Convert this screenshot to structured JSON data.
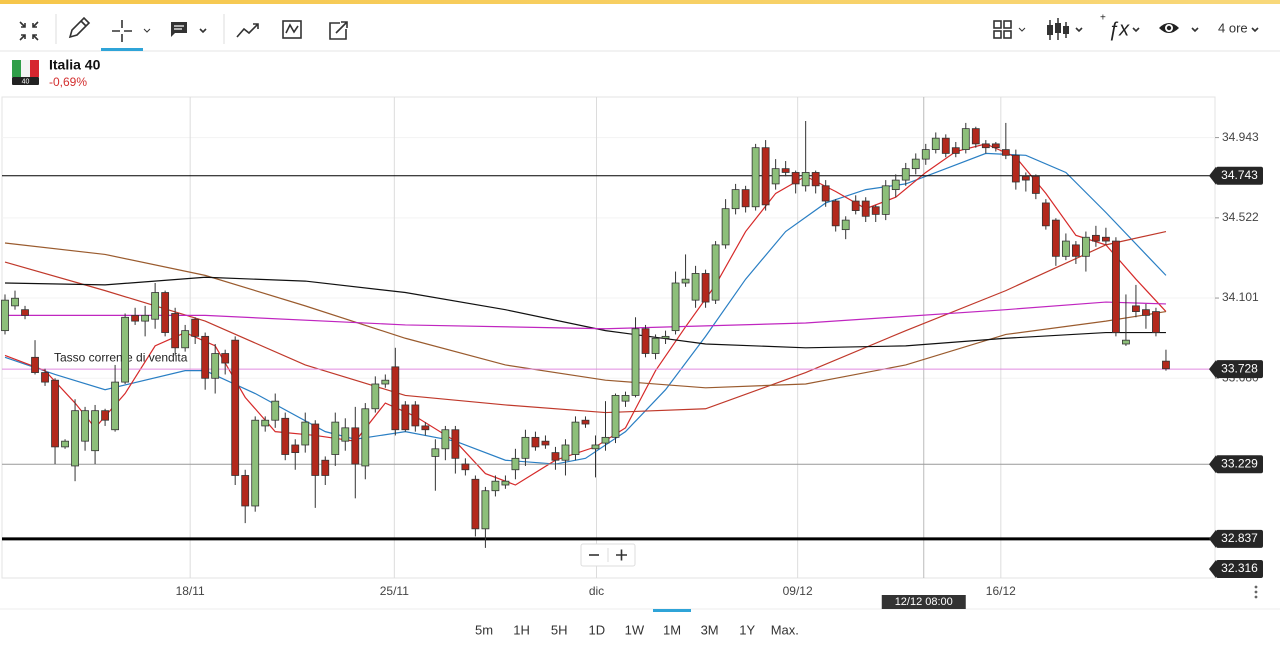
{
  "toolbar": {
    "interval": "4 ore"
  },
  "instrument": {
    "name": "Italia 40",
    "change": "-0,69%",
    "badge": "40"
  },
  "ranges": [
    "5m",
    "1H",
    "5H",
    "1D",
    "1W",
    "1M",
    "3M",
    "1Y",
    "Max."
  ],
  "chart_data": {
    "type": "candlestick",
    "xlim": [
      -0.3,
      120.9
    ],
    "ylim": [
      32.632,
      35.156
    ],
    "xticks": [
      {
        "value": 18.5,
        "label": "18/11"
      },
      {
        "value": 38.9,
        "label": "25/11"
      },
      {
        "value": 59.1,
        "label": "dic"
      },
      {
        "value": 79.2,
        "label": "09/12"
      },
      {
        "value": 99.5,
        "label": "16/12"
      }
    ],
    "yticks": [
      34.943,
      34.522,
      34.101,
      {
        "value": 33.68,
        "label": "33.680"
      }
    ],
    "crosshair": {
      "value": 91.8,
      "label": "12/12 08:00"
    },
    "up_color": "#8dbf7a",
    "down_color": "#b3281c",
    "price_lines": [
      {
        "value": 34.743,
        "color": "#000000",
        "width": 1
      },
      {
        "value": 33.728,
        "color": "#e08be0",
        "width": 1,
        "annotation": "Tasso corrente di vendita"
      },
      {
        "value": 33.229,
        "color": "#999999",
        "width": 1
      },
      {
        "value": 32.837,
        "color": "#000000",
        "width": 3
      },
      {
        "value": 32.316,
        "color": "#000000",
        "width": 1
      }
    ],
    "candles": [
      {
        "o": 33.93,
        "h": 34.12,
        "l": 33.91,
        "c": 34.09
      },
      {
        "o": 34.06,
        "h": 34.14,
        "l": 34.04,
        "c": 34.1
      },
      {
        "o": 34.04,
        "h": 34.06,
        "l": 33.99,
        "c": 34.01
      },
      {
        "o": 33.79,
        "h": 33.88,
        "l": 33.7,
        "c": 33.71
      },
      {
        "o": 33.71,
        "h": 33.73,
        "l": 33.64,
        "c": 33.66
      },
      {
        "o": 33.67,
        "h": 33.68,
        "l": 33.23,
        "c": 33.32
      },
      {
        "o": 33.32,
        "h": 33.36,
        "l": 33.31,
        "c": 33.35
      },
      {
        "o": 33.22,
        "h": 33.57,
        "l": 33.14,
        "c": 33.51
      },
      {
        "o": 33.35,
        "h": 33.53,
        "l": 33.3,
        "c": 33.51
      },
      {
        "o": 33.3,
        "h": 33.54,
        "l": 33.23,
        "c": 33.51
      },
      {
        "o": 33.51,
        "h": 33.52,
        "l": 33.43,
        "c": 33.46
      },
      {
        "o": 33.41,
        "h": 33.75,
        "l": 33.4,
        "c": 33.66
      },
      {
        "o": 33.66,
        "h": 34.02,
        "l": 33.65,
        "c": 34.0
      },
      {
        "o": 34.01,
        "h": 34.05,
        "l": 33.96,
        "c": 33.98
      },
      {
        "o": 33.98,
        "h": 34.06,
        "l": 33.9,
        "c": 34.01
      },
      {
        "o": 33.99,
        "h": 34.18,
        "l": 33.94,
        "c": 34.13
      },
      {
        "o": 34.13,
        "h": 34.14,
        "l": 33.9,
        "c": 33.92
      },
      {
        "o": 34.02,
        "h": 34.05,
        "l": 33.8,
        "c": 33.84
      },
      {
        "o": 33.84,
        "h": 33.96,
        "l": 33.82,
        "c": 33.93
      },
      {
        "o": 33.99,
        "h": 34.0,
        "l": 33.86,
        "c": 33.9
      },
      {
        "o": 33.9,
        "h": 33.92,
        "l": 33.62,
        "c": 33.68
      },
      {
        "o": 33.68,
        "h": 33.86,
        "l": 33.6,
        "c": 33.81
      },
      {
        "o": 33.81,
        "h": 33.83,
        "l": 33.7,
        "c": 33.76
      },
      {
        "o": 33.88,
        "h": 33.9,
        "l": 33.12,
        "c": 33.17
      },
      {
        "o": 33.17,
        "h": 33.2,
        "l": 32.92,
        "c": 33.01
      },
      {
        "o": 33.01,
        "h": 33.48,
        "l": 32.98,
        "c": 33.46
      },
      {
        "o": 33.43,
        "h": 33.48,
        "l": 33.4,
        "c": 33.46
      },
      {
        "o": 33.46,
        "h": 33.6,
        "l": 33.42,
        "c": 33.56
      },
      {
        "o": 33.47,
        "h": 33.5,
        "l": 33.25,
        "c": 33.28
      },
      {
        "o": 33.33,
        "h": 33.36,
        "l": 33.2,
        "c": 33.29
      },
      {
        "o": 33.33,
        "h": 33.5,
        "l": 33.29,
        "c": 33.45
      },
      {
        "o": 33.44,
        "h": 33.46,
        "l": 33.0,
        "c": 33.17
      },
      {
        "o": 33.25,
        "h": 33.27,
        "l": 33.12,
        "c": 33.17
      },
      {
        "o": 33.28,
        "h": 33.5,
        "l": 33.22,
        "c": 33.45
      },
      {
        "o": 33.35,
        "h": 33.47,
        "l": 33.3,
        "c": 33.42
      },
      {
        "o": 33.42,
        "h": 33.53,
        "l": 33.05,
        "c": 33.23
      },
      {
        "o": 33.22,
        "h": 33.55,
        "l": 33.15,
        "c": 33.52
      },
      {
        "o": 33.52,
        "h": 33.69,
        "l": 33.5,
        "c": 33.65
      },
      {
        "o": 33.65,
        "h": 33.7,
        "l": 33.63,
        "c": 33.67
      },
      {
        "o": 33.74,
        "h": 33.84,
        "l": 33.38,
        "c": 33.41
      },
      {
        "o": 33.54,
        "h": 33.56,
        "l": 33.4,
        "c": 33.41
      },
      {
        "o": 33.54,
        "h": 33.56,
        "l": 33.4,
        "c": 33.43
      },
      {
        "o": 33.43,
        "h": 33.45,
        "l": 33.38,
        "c": 33.41
      },
      {
        "o": 33.27,
        "h": 33.36,
        "l": 33.09,
        "c": 33.31
      },
      {
        "o": 33.31,
        "h": 33.43,
        "l": 33.25,
        "c": 33.41
      },
      {
        "o": 33.41,
        "h": 33.43,
        "l": 33.18,
        "c": 33.26
      },
      {
        "o": 33.23,
        "h": 33.26,
        "l": 33.17,
        "c": 33.2
      },
      {
        "o": 33.15,
        "h": 33.17,
        "l": 32.85,
        "c": 32.89
      },
      {
        "o": 32.89,
        "h": 33.11,
        "l": 32.79,
        "c": 33.09
      },
      {
        "o": 33.09,
        "h": 33.17,
        "l": 33.06,
        "c": 33.14
      },
      {
        "o": 33.12,
        "h": 33.17,
        "l": 33.1,
        "c": 33.14
      },
      {
        "o": 33.2,
        "h": 33.31,
        "l": 33.15,
        "c": 33.26
      },
      {
        "o": 33.26,
        "h": 33.41,
        "l": 33.22,
        "c": 33.37
      },
      {
        "o": 33.37,
        "h": 33.4,
        "l": 33.3,
        "c": 33.32
      },
      {
        "o": 33.35,
        "h": 33.38,
        "l": 33.31,
        "c": 33.33
      },
      {
        "o": 33.29,
        "h": 33.32,
        "l": 33.2,
        "c": 33.25
      },
      {
        "o": 33.25,
        "h": 33.36,
        "l": 33.17,
        "c": 33.33
      },
      {
        "o": 33.28,
        "h": 33.48,
        "l": 33.25,
        "c": 33.45
      },
      {
        "o": 33.46,
        "h": 33.48,
        "l": 33.42,
        "c": 33.44
      },
      {
        "o": 33.31,
        "h": 33.38,
        "l": 33.16,
        "c": 33.33
      },
      {
        "o": 33.34,
        "h": 33.56,
        "l": 33.3,
        "c": 33.37
      },
      {
        "o": 33.37,
        "h": 33.6,
        "l": 33.34,
        "c": 33.59
      },
      {
        "o": 33.56,
        "h": 33.61,
        "l": 33.53,
        "c": 33.59
      },
      {
        "o": 33.59,
        "h": 34.0,
        "l": 33.58,
        "c": 33.94
      },
      {
        "o": 33.94,
        "h": 33.96,
        "l": 33.79,
        "c": 33.81
      },
      {
        "o": 33.81,
        "h": 33.91,
        "l": 33.78,
        "c": 33.89
      },
      {
        "o": 33.89,
        "h": 33.93,
        "l": 33.86,
        "c": 33.9
      },
      {
        "o": 33.93,
        "h": 34.24,
        "l": 33.91,
        "c": 34.18
      },
      {
        "o": 34.18,
        "h": 34.33,
        "l": 34.16,
        "c": 34.2
      },
      {
        "o": 34.09,
        "h": 34.27,
        "l": 34.05,
        "c": 34.23
      },
      {
        "o": 34.23,
        "h": 34.25,
        "l": 34.05,
        "c": 34.08
      },
      {
        "o": 34.09,
        "h": 34.4,
        "l": 34.07,
        "c": 34.38
      },
      {
        "o": 34.38,
        "h": 34.62,
        "l": 34.36,
        "c": 34.57
      },
      {
        "o": 34.57,
        "h": 34.7,
        "l": 34.54,
        "c": 34.67
      },
      {
        "o": 34.67,
        "h": 34.69,
        "l": 34.55,
        "c": 34.58
      },
      {
        "o": 34.58,
        "h": 34.91,
        "l": 34.56,
        "c": 34.89
      },
      {
        "o": 34.89,
        "h": 34.93,
        "l": 34.56,
        "c": 34.59
      },
      {
        "o": 34.7,
        "h": 34.83,
        "l": 34.67,
        "c": 34.78
      },
      {
        "o": 34.78,
        "h": 34.82,
        "l": 34.74,
        "c": 34.76
      },
      {
        "o": 34.76,
        "h": 34.77,
        "l": 34.65,
        "c": 34.7
      },
      {
        "o": 34.69,
        "h": 35.03,
        "l": 34.66,
        "c": 34.76
      },
      {
        "o": 34.76,
        "h": 34.77,
        "l": 34.65,
        "c": 34.69
      },
      {
        "o": 34.69,
        "h": 34.72,
        "l": 34.58,
        "c": 34.61
      },
      {
        "o": 34.61,
        "h": 34.62,
        "l": 34.45,
        "c": 34.48
      },
      {
        "o": 34.46,
        "h": 34.53,
        "l": 34.41,
        "c": 34.51
      },
      {
        "o": 34.61,
        "h": 34.64,
        "l": 34.54,
        "c": 34.56
      },
      {
        "o": 34.61,
        "h": 34.63,
        "l": 34.5,
        "c": 34.53
      },
      {
        "o": 34.58,
        "h": 34.59,
        "l": 34.5,
        "c": 34.54
      },
      {
        "o": 34.54,
        "h": 34.72,
        "l": 34.51,
        "c": 34.69
      },
      {
        "o": 34.67,
        "h": 34.75,
        "l": 34.63,
        "c": 34.72
      },
      {
        "o": 34.72,
        "h": 34.81,
        "l": 34.69,
        "c": 34.78
      },
      {
        "o": 34.78,
        "h": 34.86,
        "l": 34.75,
        "c": 34.83
      },
      {
        "o": 34.83,
        "h": 34.91,
        "l": 34.8,
        "c": 34.88
      },
      {
        "o": 34.88,
        "h": 34.97,
        "l": 34.86,
        "c": 34.94
      },
      {
        "o": 34.94,
        "h": 34.96,
        "l": 34.84,
        "c": 34.86
      },
      {
        "o": 34.89,
        "h": 34.92,
        "l": 34.84,
        "c": 34.86
      },
      {
        "o": 34.88,
        "h": 35.02,
        "l": 34.86,
        "c": 34.99
      },
      {
        "o": 34.99,
        "h": 35.0,
        "l": 34.89,
        "c": 34.91
      },
      {
        "o": 34.91,
        "h": 34.93,
        "l": 34.86,
        "c": 34.89
      },
      {
        "o": 34.91,
        "h": 34.92,
        "l": 34.87,
        "c": 34.89
      },
      {
        "o": 34.88,
        "h": 35.02,
        "l": 34.83,
        "c": 34.85
      },
      {
        "o": 34.85,
        "h": 34.88,
        "l": 34.67,
        "c": 34.71
      },
      {
        "o": 34.74,
        "h": 34.76,
        "l": 34.66,
        "c": 34.72
      },
      {
        "o": 34.74,
        "h": 34.75,
        "l": 34.62,
        "c": 34.65
      },
      {
        "o": 34.6,
        "h": 34.62,
        "l": 34.46,
        "c": 34.48
      },
      {
        "o": 34.51,
        "h": 34.52,
        "l": 34.27,
        "c": 34.32
      },
      {
        "o": 34.32,
        "h": 34.44,
        "l": 34.3,
        "c": 34.4
      },
      {
        "o": 34.38,
        "h": 34.4,
        "l": 34.28,
        "c": 34.32
      },
      {
        "o": 34.32,
        "h": 34.45,
        "l": 34.24,
        "c": 34.42
      },
      {
        "o": 34.43,
        "h": 34.48,
        "l": 34.37,
        "c": 34.4
      },
      {
        "o": 34.42,
        "h": 34.47,
        "l": 34.38,
        "c": 34.4
      },
      {
        "o": 34.4,
        "h": 34.42,
        "l": 33.9,
        "c": 33.92
      },
      {
        "o": 33.86,
        "h": 34.12,
        "l": 33.85,
        "c": 33.88
      },
      {
        "o": 34.06,
        "h": 34.17,
        "l": 34.0,
        "c": 34.03
      },
      {
        "o": 34.04,
        "h": 34.07,
        "l": 33.94,
        "c": 34.01
      },
      {
        "o": 34.03,
        "h": 34.05,
        "l": 33.9,
        "c": 33.92
      },
      {
        "o": 33.77,
        "h": 33.83,
        "l": 33.72,
        "c": 33.73
      }
    ],
    "series": [
      {
        "color": "#2a7fc4",
        "x": [
          0,
          5,
          10,
          18,
          20,
          25,
          32,
          35,
          40,
          45,
          50,
          55,
          58,
          62,
          66,
          70,
          74,
          78,
          82,
          86,
          90,
          94,
          98,
          102,
          106,
          110,
          114,
          116
        ],
        "values": [
          33.79,
          33.7,
          33.62,
          33.72,
          33.72,
          33.6,
          33.4,
          33.36,
          33.4,
          33.35,
          33.25,
          33.23,
          33.26,
          33.4,
          33.62,
          33.9,
          34.2,
          34.45,
          34.6,
          34.67,
          34.7,
          34.78,
          34.86,
          34.85,
          34.76,
          34.55,
          34.33,
          34.22
        ]
      },
      {
        "color": "#d62a2a",
        "x": [
          0,
          4,
          7,
          9,
          12,
          15,
          18,
          21,
          24,
          27,
          31,
          35,
          38,
          41,
          45,
          48,
          51,
          55,
          59,
          62,
          65,
          68,
          71,
          74,
          77,
          80,
          83,
          86,
          89,
          92,
          95,
          98,
          101,
          104,
          107,
          110,
          113,
          116
        ],
        "values": [
          33.8,
          33.72,
          33.55,
          33.42,
          33.6,
          33.85,
          33.92,
          33.85,
          33.58,
          33.4,
          33.38,
          33.35,
          33.55,
          33.48,
          33.35,
          33.18,
          33.12,
          33.25,
          33.32,
          33.42,
          33.72,
          33.95,
          34.17,
          34.45,
          34.65,
          34.74,
          34.66,
          34.57,
          34.63,
          34.76,
          34.87,
          34.91,
          34.84,
          34.65,
          34.43,
          34.38,
          34.2,
          34.03
        ]
      },
      {
        "color": "#c0392b",
        "x": [
          0,
          10,
          20,
          30,
          40,
          50,
          60,
          70,
          80,
          90,
          100,
          110,
          116
        ],
        "values": [
          34.29,
          34.14,
          33.98,
          33.75,
          33.59,
          33.54,
          33.5,
          33.52,
          33.71,
          33.93,
          34.14,
          34.38,
          34.45
        ]
      },
      {
        "color": "#9a5b2e",
        "x": [
          0,
          10,
          20,
          30,
          40,
          50,
          60,
          70,
          80,
          90,
          100,
          110,
          116
        ],
        "values": [
          34.39,
          34.33,
          34.22,
          34.06,
          33.89,
          33.75,
          33.67,
          33.63,
          33.65,
          33.75,
          33.91,
          33.98,
          34.03
        ]
      },
      {
        "color": "#111111",
        "x": [
          0,
          10,
          20,
          30,
          40,
          50,
          60,
          70,
          80,
          90,
          100,
          110,
          116
        ],
        "values": [
          34.18,
          34.17,
          34.21,
          34.19,
          34.13,
          34.04,
          33.93,
          33.86,
          33.84,
          33.85,
          33.89,
          33.92,
          33.92
        ]
      },
      {
        "color": "#c026c0",
        "x": [
          0,
          20,
          40,
          60,
          80,
          100,
          110,
          116
        ],
        "values": [
          34.01,
          34.01,
          33.96,
          33.94,
          33.97,
          34.04,
          34.08,
          34.07
        ]
      }
    ]
  }
}
